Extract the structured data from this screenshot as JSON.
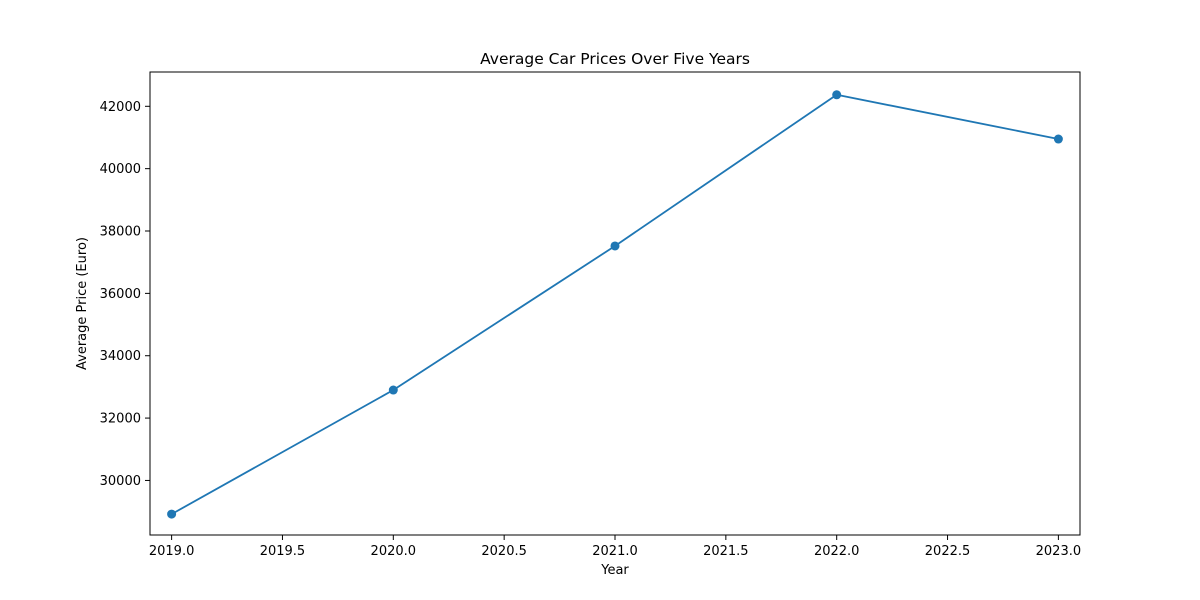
{
  "chart_data": {
    "type": "line",
    "title": "Average Car Prices Over Five Years",
    "xlabel": "Year",
    "ylabel": "Average Price (Euro)",
    "xlim": [
      2018.9025,
      2023.0975
    ],
    "ylim": [
      28250,
      43100
    ],
    "xticks": [
      2019.0,
      2019.5,
      2020.0,
      2020.5,
      2021.0,
      2021.5,
      2022.0,
      2022.5,
      2023.0
    ],
    "xtick_labels": [
      "2019.0",
      "2019.5",
      "2020.0",
      "2020.5",
      "2021.0",
      "2021.5",
      "2022.0",
      "2022.5",
      "2023.0"
    ],
    "yticks": [
      30000,
      32000,
      34000,
      36000,
      38000,
      40000,
      42000
    ],
    "ytick_labels": [
      "30000",
      "32000",
      "34000",
      "36000",
      "38000",
      "40000",
      "42000"
    ],
    "grid": false,
    "series": [
      {
        "color": "#1f77b4",
        "marker": "circle",
        "x": [
          2019,
          2020,
          2021,
          2022,
          2023
        ],
        "y": [
          28920,
          32900,
          37520,
          42370,
          40950
        ]
      }
    ]
  }
}
